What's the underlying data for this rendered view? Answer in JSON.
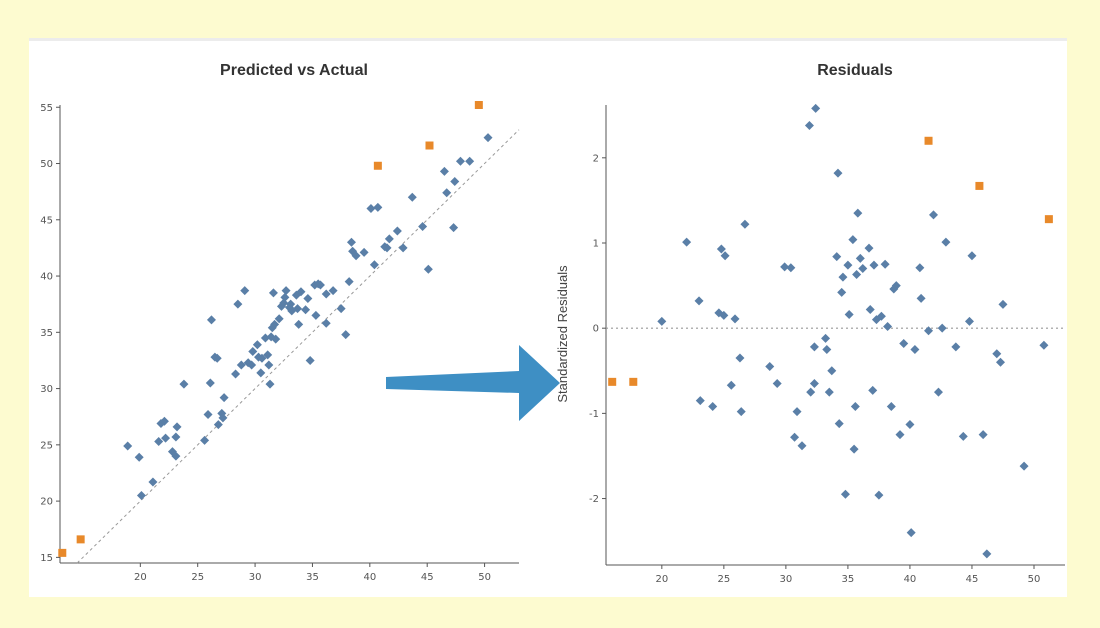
{
  "colors": {
    "background": "#fdfbd0",
    "point": "#5a7fa7",
    "outlier": "#e8892a",
    "arrow": "#3e8fc4",
    "reference_line": "#999999"
  },
  "arrow": {
    "icon": "right-arrow-icon"
  },
  "chart_data": [
    {
      "type": "scatter",
      "title": "Predicted vs Actual",
      "xlabel": "",
      "ylabel": "",
      "xlim": [
        13,
        53
      ],
      "ylim": [
        14.5,
        55.2
      ],
      "x_ticks": [
        20,
        25,
        30,
        35,
        40,
        45,
        50
      ],
      "x_tick_labels": [
        "20",
        "25",
        "30",
        "35",
        "40",
        "45",
        "50"
      ],
      "y_ticks": [
        15,
        20,
        25,
        30,
        35,
        40,
        45,
        50,
        55
      ],
      "y_tick_labels": [
        "15",
        "20",
        "25",
        "30",
        "35",
        "40",
        "45",
        "50",
        "55"
      ],
      "reference_line": "y = x",
      "series": [
        {
          "role": "regular",
          "points": [
            [
              18.9,
              24.9
            ],
            [
              19.9,
              23.9
            ],
            [
              20.1,
              20.5
            ],
            [
              21.1,
              21.7
            ],
            [
              21.6,
              25.3
            ],
            [
              21.8,
              26.9
            ],
            [
              22.1,
              27.1
            ],
            [
              22.2,
              25.6
            ],
            [
              22.8,
              24.4
            ],
            [
              23.1,
              24.0
            ],
            [
              23.1,
              25.7
            ],
            [
              23.2,
              26.6
            ],
            [
              23.8,
              30.4
            ],
            [
              25.6,
              25.4
            ],
            [
              25.9,
              27.7
            ],
            [
              26.1,
              30.5
            ],
            [
              26.2,
              36.1
            ],
            [
              26.5,
              32.8
            ],
            [
              26.7,
              32.7
            ],
            [
              26.8,
              26.8
            ],
            [
              27.1,
              27.8
            ],
            [
              27.2,
              27.4
            ],
            [
              27.3,
              29.2
            ],
            [
              28.3,
              31.3
            ],
            [
              28.5,
              37.5
            ],
            [
              28.8,
              32.1
            ],
            [
              29.1,
              38.7
            ],
            [
              29.4,
              32.3
            ],
            [
              29.7,
              32.1
            ],
            [
              29.8,
              33.3
            ],
            [
              30.2,
              33.9
            ],
            [
              30.3,
              32.8
            ],
            [
              30.5,
              31.4
            ],
            [
              30.6,
              32.7
            ],
            [
              30.9,
              34.5
            ],
            [
              31.1,
              33.0
            ],
            [
              31.2,
              32.1
            ],
            [
              31.3,
              30.4
            ],
            [
              31.4,
              34.6
            ],
            [
              31.5,
              35.4
            ],
            [
              31.6,
              38.5
            ],
            [
              31.7,
              35.7
            ],
            [
              31.8,
              34.4
            ],
            [
              32.1,
              36.2
            ],
            [
              32.3,
              37.3
            ],
            [
              32.5,
              37.6
            ],
            [
              32.6,
              38.1
            ],
            [
              32.7,
              38.7
            ],
            [
              33.0,
              37.2
            ],
            [
              33.1,
              37.5
            ],
            [
              33.2,
              36.9
            ],
            [
              33.6,
              38.3
            ],
            [
              33.7,
              37.1
            ],
            [
              33.8,
              35.7
            ],
            [
              34.0,
              38.6
            ],
            [
              34.4,
              37.0
            ],
            [
              34.6,
              38.0
            ],
            [
              34.8,
              32.5
            ],
            [
              35.2,
              39.2
            ],
            [
              35.3,
              36.5
            ],
            [
              35.5,
              39.3
            ],
            [
              35.7,
              39.2
            ],
            [
              36.2,
              38.4
            ],
            [
              36.2,
              35.8
            ],
            [
              36.8,
              38.7
            ],
            [
              37.5,
              37.1
            ],
            [
              37.9,
              34.8
            ],
            [
              38.2,
              39.5
            ],
            [
              38.4,
              43.0
            ],
            [
              38.5,
              42.2
            ],
            [
              38.8,
              41.8
            ],
            [
              39.5,
              42.1
            ],
            [
              40.1,
              46.0
            ],
            [
              40.4,
              41.0
            ],
            [
              40.7,
              46.1
            ],
            [
              41.3,
              42.6
            ],
            [
              41.5,
              42.5
            ],
            [
              41.7,
              43.3
            ],
            [
              42.4,
              44.0
            ],
            [
              42.9,
              42.5
            ],
            [
              43.7,
              47.0
            ],
            [
              44.6,
              44.4
            ],
            [
              45.1,
              40.6
            ],
            [
              46.5,
              49.3
            ],
            [
              46.7,
              47.4
            ],
            [
              47.3,
              44.3
            ],
            [
              47.4,
              48.4
            ],
            [
              47.9,
              50.2
            ],
            [
              48.7,
              50.2
            ],
            [
              50.3,
              52.3
            ]
          ]
        },
        {
          "role": "outlier",
          "points": [
            [
              13.2,
              15.4
            ],
            [
              14.8,
              16.6
            ],
            [
              40.7,
              49.8
            ],
            [
              45.2,
              51.6
            ],
            [
              49.5,
              55.2
            ]
          ]
        }
      ]
    },
    {
      "type": "scatter",
      "title": "Residuals",
      "xlabel": "",
      "ylabel": "Standardized Residuals",
      "xlim": [
        15.5,
        52.5
      ],
      "ylim": [
        -2.78,
        2.62
      ],
      "x_ticks": [
        20,
        25,
        30,
        35,
        40,
        45,
        50
      ],
      "x_tick_labels": [
        "20",
        "25",
        "30",
        "35",
        "40",
        "45",
        "50"
      ],
      "y_ticks": [
        -2,
        -1,
        0,
        1,
        2
      ],
      "y_tick_labels": [
        "-2",
        "-1",
        "0",
        "1",
        "2"
      ],
      "reference_line": "y = 0",
      "series": [
        {
          "role": "regular",
          "points": [
            [
              20.0,
              0.08
            ],
            [
              22.0,
              1.01
            ],
            [
              23.0,
              0.32
            ],
            [
              23.1,
              -0.85
            ],
            [
              24.1,
              -0.92
            ],
            [
              24.6,
              0.18
            ],
            [
              25.0,
              0.15
            ],
            [
              24.8,
              0.93
            ],
            [
              25.1,
              0.85
            ],
            [
              25.6,
              -0.67
            ],
            [
              25.9,
              0.11
            ],
            [
              26.3,
              -0.35
            ],
            [
              26.4,
              -0.98
            ],
            [
              26.7,
              1.22
            ],
            [
              28.7,
              -0.45
            ],
            [
              29.3,
              -0.65
            ],
            [
              30.4,
              0.71
            ],
            [
              30.7,
              -1.28
            ],
            [
              30.9,
              -0.98
            ],
            [
              31.3,
              -1.38
            ],
            [
              31.9,
              2.38
            ],
            [
              32.0,
              -0.75
            ],
            [
              32.3,
              -0.65
            ],
            [
              32.3,
              -0.22
            ],
            [
              33.2,
              -0.12
            ],
            [
              33.3,
              -0.25
            ],
            [
              33.5,
              -0.75
            ],
            [
              33.7,
              -0.5
            ],
            [
              34.1,
              0.84
            ],
            [
              34.2,
              1.82
            ],
            [
              34.3,
              -1.12
            ],
            [
              34.5,
              0.42
            ],
            [
              34.6,
              0.6
            ],
            [
              34.8,
              -1.95
            ],
            [
              35.0,
              0.74
            ],
            [
              35.1,
              0.16
            ],
            [
              35.4,
              1.04
            ],
            [
              35.5,
              -1.42
            ],
            [
              35.7,
              0.63
            ],
            [
              35.8,
              1.35
            ],
            [
              36.0,
              0.82
            ],
            [
              36.2,
              0.7
            ],
            [
              36.7,
              0.94
            ],
            [
              36.8,
              0.22
            ],
            [
              37.0,
              -0.73
            ],
            [
              37.1,
              0.74
            ],
            [
              37.3,
              0.1
            ],
            [
              37.5,
              -1.96
            ],
            [
              37.7,
              0.14
            ],
            [
              38.0,
              0.75
            ],
            [
              38.5,
              -0.92
            ],
            [
              38.7,
              0.46
            ],
            [
              38.9,
              0.5
            ],
            [
              39.2,
              -1.25
            ],
            [
              39.5,
              -0.18
            ],
            [
              40.0,
              -1.13
            ],
            [
              40.4,
              -0.25
            ],
            [
              40.8,
              0.71
            ],
            [
              40.9,
              0.35
            ],
            [
              41.5,
              -0.03
            ],
            [
              41.9,
              1.33
            ],
            [
              42.3,
              -0.75
            ],
            [
              42.6,
              0.0
            ],
            [
              42.9,
              1.01
            ],
            [
              43.7,
              -0.22
            ],
            [
              44.3,
              -1.27
            ],
            [
              44.8,
              0.08
            ],
            [
              45.0,
              0.85
            ],
            [
              45.9,
              -1.25
            ],
            [
              46.2,
              -2.65
            ],
            [
              47.0,
              -0.3
            ],
            [
              47.3,
              -0.4
            ],
            [
              47.5,
              0.28
            ],
            [
              49.2,
              -1.62
            ],
            [
              50.8,
              -0.2
            ],
            [
              40.1,
              -2.4
            ],
            [
              32.4,
              2.58
            ],
            [
              35.6,
              -0.92
            ],
            [
              38.2,
              0.02
            ],
            [
              29.9,
              0.72
            ]
          ]
        },
        {
          "role": "outlier",
          "points": [
            [
              16.0,
              -0.63
            ],
            [
              17.7,
              -0.63
            ],
            [
              41.5,
              2.2
            ],
            [
              45.6,
              1.67
            ],
            [
              51.2,
              1.28
            ]
          ]
        }
      ]
    }
  ]
}
